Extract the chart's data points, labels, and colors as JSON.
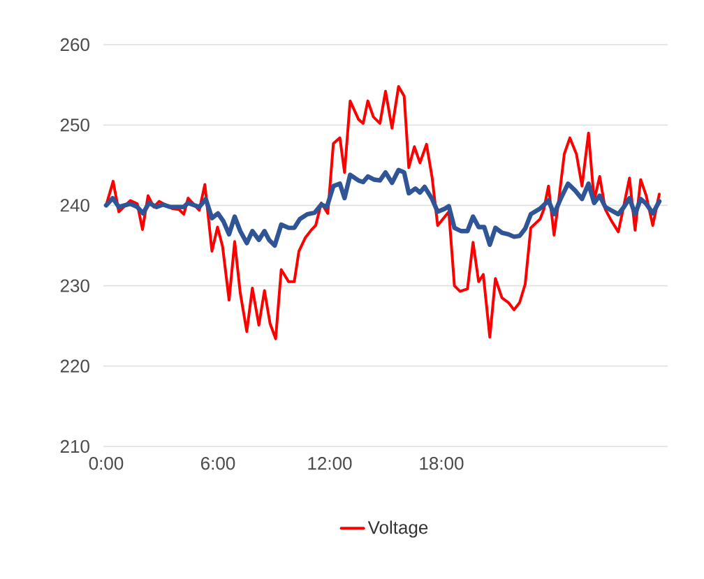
{
  "chart_data": {
    "type": "line",
    "xlim": [
      -0.15,
      30.15
    ],
    "xticks": [
      {
        "value": 0,
        "label": "0:00"
      },
      {
        "value": 6,
        "label": "6:00"
      },
      {
        "value": 12,
        "label": "12:00"
      },
      {
        "value": 18,
        "label": "18:00"
      }
    ],
    "ylim": [
      210,
      260
    ],
    "yticks": [
      210,
      220,
      230,
      240,
      250,
      260
    ],
    "grid": "y",
    "legend": "bottom",
    "marker": "none",
    "line_style": "solid",
    "series": [
      {
        "name": "Voltage",
        "color": "#ff0000",
        "x": [
          0,
          0.375,
          0.68,
          1.3,
          1.67,
          1.95,
          2.25,
          2.55,
          2.85,
          3.55,
          3.9,
          4.17,
          4.4,
          5,
          5.3,
          5.68,
          5.98,
          6.25,
          6.6,
          6.9,
          7.2,
          7.55,
          7.85,
          8.2,
          8.5,
          8.8,
          9.1,
          9.4,
          9.8,
          10.1,
          10.35,
          10.7,
          11,
          11.25,
          11.55,
          11.9,
          12.2,
          12.55,
          12.8,
          13.1,
          13.55,
          13.8,
          14.05,
          14.35,
          14.7,
          15.0,
          15.35,
          15.7,
          16.0,
          16.25,
          16.55,
          16.85,
          17.2,
          17.5,
          17.8,
          18.4,
          18.7,
          19.0,
          19.4,
          19.7,
          20.0,
          20.25,
          20.6,
          20.9,
          21.25,
          21.6,
          21.9,
          22.2,
          22.5,
          22.8,
          23.3,
          23.5,
          23.75,
          24.05,
          24.3,
          24.6,
          24.9,
          25.25,
          25.55,
          25.9,
          26.2,
          26.5,
          26.8,
          27.1,
          27.5,
          27.8,
          28.1,
          28.4,
          28.7,
          29.0,
          29.35,
          29.7
        ],
        "values": [
          240,
          243,
          239.2,
          240.6,
          240.2,
          237,
          241.2,
          239.8,
          240.5,
          239.6,
          239.5,
          238.9,
          240.9,
          239.4,
          242.6,
          234.3,
          237.3,
          234.9,
          228.2,
          235.5,
          229.1,
          224.3,
          229.7,
          225.1,
          229.4,
          225.3,
          223.4,
          232,
          230.5,
          230.5,
          234.3,
          236,
          236.9,
          237.5,
          240.3,
          239,
          247.7,
          248.4,
          244.1,
          253,
          250.7,
          250.2,
          253,
          251,
          250.2,
          254.2,
          249.6,
          254.8,
          253.6,
          244.7,
          247.3,
          245.3,
          247.6,
          243.5,
          237.5,
          239.2,
          230,
          229.3,
          229.6,
          235.4,
          230.5,
          231.4,
          223.6,
          230.9,
          228.5,
          227.9,
          227,
          227.9,
          230.2,
          237.2,
          238.3,
          239.5,
          242.4,
          236.3,
          240.6,
          246.4,
          248.4,
          246.4,
          242.4,
          249,
          240.6,
          243.6,
          239.5,
          238.2,
          236.7,
          240,
          243.4,
          236.9,
          243.2,
          241.2,
          237.5,
          241.4
        ]
      },
      {
        "color": "#2f5597",
        "x": [
          0,
          0.35,
          0.68,
          1.3,
          1.67,
          1.98,
          2.3,
          2.7,
          3.05,
          3.45,
          3.85,
          4.17,
          4.4,
          5.0,
          5.35,
          5.68,
          6.0,
          6.3,
          6.6,
          6.9,
          7.2,
          7.55,
          7.85,
          8.2,
          8.5,
          8.75,
          9.05,
          9.4,
          9.8,
          10.1,
          10.4,
          10.8,
          11.2,
          11.55,
          11.85,
          12.2,
          12.55,
          12.8,
          13.1,
          13.55,
          13.8,
          14.05,
          14.4,
          14.7,
          15.0,
          15.35,
          15.7,
          16.0,
          16.25,
          16.6,
          16.85,
          17.1,
          17.5,
          17.8,
          18.2,
          18.4,
          18.7,
          19.05,
          19.4,
          19.7,
          20.0,
          20.3,
          20.6,
          20.9,
          21.25,
          21.6,
          21.9,
          22.2,
          22.5,
          22.8,
          23.3,
          23.75,
          24.05,
          24.4,
          24.8,
          25.2,
          25.55,
          25.9,
          26.2,
          26.5,
          26.8,
          27.1,
          27.5,
          27.8,
          28.1,
          28.4,
          28.7,
          29.0,
          29.35,
          29.7
        ],
        "values": [
          240,
          240.9,
          239.8,
          240.2,
          239.8,
          239,
          240.3,
          239.8,
          240.1,
          239.8,
          239.8,
          239.8,
          240.3,
          239.8,
          240.8,
          238.4,
          239,
          238,
          236.4,
          238.6,
          236.8,
          235.3,
          236.8,
          235.7,
          236.8,
          235.7,
          235,
          237.6,
          237.2,
          237.2,
          238.3,
          238.9,
          239.1,
          240.1,
          239.8,
          242.4,
          242.7,
          240.9,
          243.8,
          243.1,
          242.9,
          243.6,
          243.2,
          243.1,
          244.1,
          242.8,
          244.4,
          244.1,
          241.5,
          242.1,
          241.6,
          242.3,
          240.8,
          239.2,
          239.6,
          239.9,
          237.2,
          236.8,
          236.8,
          238.6,
          237.3,
          237.3,
          235.1,
          237.2,
          236.6,
          236.4,
          236.1,
          236.2,
          237.1,
          238.9,
          239.6,
          240.6,
          238.9,
          240.8,
          242.7,
          241.8,
          240.8,
          242.7,
          240.3,
          241.2,
          239.8,
          239.4,
          238.9,
          239.8,
          240.9,
          238.9,
          240.8,
          240.2,
          239,
          240.5
        ]
      }
    ]
  }
}
